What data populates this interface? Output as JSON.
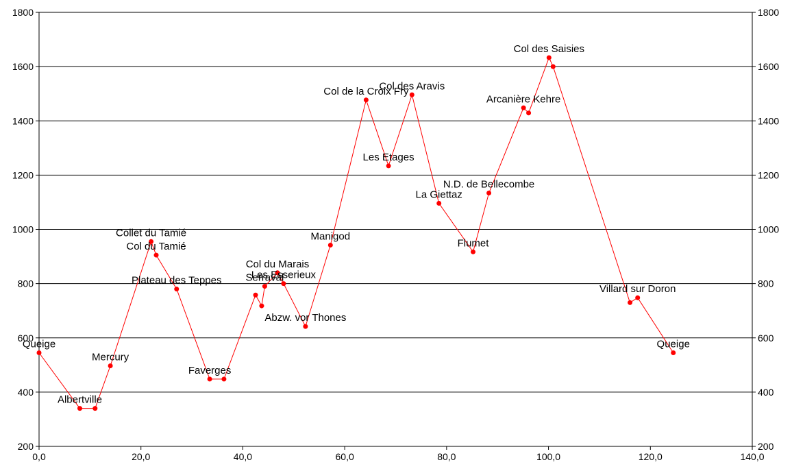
{
  "chart_data": {
    "type": "line",
    "title": "",
    "xlabel": "",
    "ylabel": "",
    "xlim": [
      0,
      140
    ],
    "ylim": [
      200,
      1800
    ],
    "x_ticks": [
      "0,0",
      "20,0",
      "40,0",
      "60,0",
      "80,0",
      "100,0",
      "120,0",
      "140,0"
    ],
    "y_ticks": [
      "200",
      "400",
      "600",
      "800",
      "1000",
      "1200",
      "1400",
      "1600",
      "1800"
    ],
    "y_ticks_right": [
      "200",
      "400",
      "600",
      "800",
      "1000",
      "1200",
      "1400",
      "1600",
      "1800"
    ],
    "grid": "horizontal",
    "series_color": "#ff0000",
    "points": [
      {
        "x": 0.0,
        "y": 545,
        "label": "Queige"
      },
      {
        "x": 8.0,
        "y": 340,
        "label": "Albertville"
      },
      {
        "x": 11.0,
        "y": 340,
        "label": ""
      },
      {
        "x": 14.0,
        "y": 497,
        "label": "Mercury"
      },
      {
        "x": 22.0,
        "y": 955,
        "label": "Collet du Tamié"
      },
      {
        "x": 23.0,
        "y": 905,
        "label": "Col du Tamié"
      },
      {
        "x": 27.0,
        "y": 780,
        "label": "Plateau des Teppes"
      },
      {
        "x": 33.5,
        "y": 448,
        "label": "Faverges"
      },
      {
        "x": 36.3,
        "y": 448,
        "label": ""
      },
      {
        "x": 42.5,
        "y": 758,
        "label": ""
      },
      {
        "x": 43.7,
        "y": 718,
        "label": ""
      },
      {
        "x": 44.3,
        "y": 790,
        "label": "Serraval"
      },
      {
        "x": 46.8,
        "y": 840,
        "label": "Col du Marais"
      },
      {
        "x": 48.0,
        "y": 800,
        "label": "Les Esserieux"
      },
      {
        "x": 52.3,
        "y": 642,
        "label": "Abzw. vor Thones"
      },
      {
        "x": 57.2,
        "y": 942,
        "label": "Manigod"
      },
      {
        "x": 64.2,
        "y": 1477,
        "label": "Col de la Croix Fry"
      },
      {
        "x": 68.6,
        "y": 1234,
        "label": "Les Etages"
      },
      {
        "x": 73.2,
        "y": 1496,
        "label": "Col des Aravis"
      },
      {
        "x": 78.5,
        "y": 1096,
        "label": "La Giettaz"
      },
      {
        "x": 85.2,
        "y": 917,
        "label": "Flumet"
      },
      {
        "x": 88.3,
        "y": 1134,
        "label": "N.D. de Bellecombe"
      },
      {
        "x": 95.1,
        "y": 1448,
        "label": "Arcanière Kehre"
      },
      {
        "x": 96.1,
        "y": 1429,
        "label": ""
      },
      {
        "x": 100.1,
        "y": 1633,
        "label": "Col des Saisies"
      },
      {
        "x": 100.9,
        "y": 1600,
        "label": ""
      },
      {
        "x": 116.0,
        "y": 730,
        "label": ""
      },
      {
        "x": 117.5,
        "y": 748,
        "label": "Villard sur Doron"
      },
      {
        "x": 124.5,
        "y": 545,
        "label": "Queige"
      }
    ]
  }
}
